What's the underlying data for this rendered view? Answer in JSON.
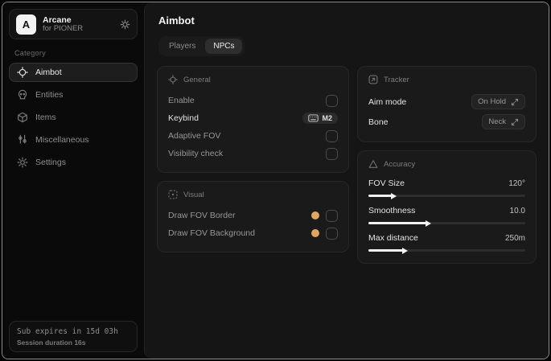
{
  "app": {
    "logo_letter": "A",
    "name": "Arcane",
    "subtitle": "for PIONER"
  },
  "sidebar": {
    "category_label": "Category",
    "items": [
      {
        "label": "Aimbot",
        "icon": "crosshair-icon",
        "active": true
      },
      {
        "label": "Entities",
        "icon": "skull-icon",
        "active": false
      },
      {
        "label": "Items",
        "icon": "box-icon",
        "active": false
      },
      {
        "label": "Miscellaneous",
        "icon": "sliders-icon",
        "active": false
      },
      {
        "label": "Settings",
        "icon": "gear-icon",
        "active": false
      }
    ],
    "footer": {
      "sub_expires": "Sub expires in 15d 03h",
      "session_duration": "Session duration 16s"
    }
  },
  "main": {
    "title": "Aimbot",
    "tabs": [
      {
        "label": "Players",
        "active": false
      },
      {
        "label": "NPCs",
        "active": true
      }
    ],
    "sections": {
      "general": {
        "title": "General",
        "rows": [
          {
            "label": "Enable",
            "control": "checkbox",
            "checked": false
          },
          {
            "label": "Keybind",
            "control": "keybind",
            "value": "M2"
          },
          {
            "label": "Adaptive FOV",
            "control": "checkbox",
            "checked": false
          },
          {
            "label": "Visibility check",
            "control": "checkbox",
            "checked": false
          }
        ]
      },
      "visual": {
        "title": "Visual",
        "rows": [
          {
            "label": "Draw FOV Border",
            "control": "color-checkbox",
            "color": "#dfa75f",
            "checked": false
          },
          {
            "label": "Draw FOV Background",
            "control": "color-checkbox",
            "color": "#dfa75f",
            "checked": false
          }
        ]
      },
      "tracker": {
        "title": "Tracker",
        "rows": [
          {
            "label": "Aim mode",
            "value": "On Hold"
          },
          {
            "label": "Bone",
            "value": "Neck"
          }
        ]
      },
      "accuracy": {
        "title": "Accuracy",
        "sliders": [
          {
            "label": "FOV Size",
            "value": "120°",
            "percent": 15
          },
          {
            "label": "Smoothness",
            "value": "10.0",
            "percent": 37
          },
          {
            "label": "Max distance",
            "value": "250m",
            "percent": 22
          }
        ]
      }
    }
  },
  "colors": {
    "accent_gold": "#dfa75f",
    "slider_fill": "#f2f2f2"
  }
}
